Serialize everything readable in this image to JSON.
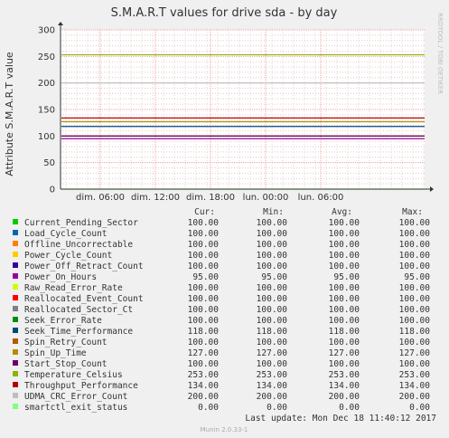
{
  "chart_data": {
    "type": "line",
    "title": "S.M.A.R.T values for drive sda - by day",
    "ylabel": "Attribute S.M.A.R.T value",
    "side_label": "RRDTOOL / TOBI OETIKER",
    "ylim": [
      0,
      300
    ],
    "y_ticks": [
      0,
      50,
      100,
      150,
      200,
      250,
      300
    ],
    "x_ticks": [
      "dim. 06:00",
      "dim. 12:00",
      "dim. 18:00",
      "lun. 00:00",
      "lun. 06:00"
    ],
    "grid": true,
    "legend_headers": [
      "Cur:",
      "Min:",
      "Avg:",
      "Max:"
    ],
    "series": [
      {
        "name": "Current_Pending_Sector",
        "color": "#00cc00",
        "cur": "100.00",
        "min": "100.00",
        "avg": "100.00",
        "max": "100.00",
        "value": 100
      },
      {
        "name": "Load_Cycle_Count",
        "color": "#0066b3",
        "cur": "100.00",
        "min": "100.00",
        "avg": "100.00",
        "max": "100.00",
        "value": 100
      },
      {
        "name": "Offline_Uncorrectable",
        "color": "#ff8000",
        "cur": "100.00",
        "min": "100.00",
        "avg": "100.00",
        "max": "100.00",
        "value": 100
      },
      {
        "name": "Power_Cycle_Count",
        "color": "#ffcc00",
        "cur": "100.00",
        "min": "100.00",
        "avg": "100.00",
        "max": "100.00",
        "value": 100
      },
      {
        "name": "Power_Off_Retract_Count",
        "color": "#330099",
        "cur": "100.00",
        "min": "100.00",
        "avg": "100.00",
        "max": "100.00",
        "value": 100
      },
      {
        "name": "Power_On_Hours",
        "color": "#990099",
        "cur": "95.00",
        "min": "95.00",
        "avg": "95.00",
        "max": "95.00",
        "value": 95
      },
      {
        "name": "Raw_Read_Error_Rate",
        "color": "#ccff00",
        "cur": "100.00",
        "min": "100.00",
        "avg": "100.00",
        "max": "100.00",
        "value": 100
      },
      {
        "name": "Reallocated_Event_Count",
        "color": "#ff0000",
        "cur": "100.00",
        "min": "100.00",
        "avg": "100.00",
        "max": "100.00",
        "value": 100
      },
      {
        "name": "Reallocated_Sector_Ct",
        "color": "#808080",
        "cur": "100.00",
        "min": "100.00",
        "avg": "100.00",
        "max": "100.00",
        "value": 100
      },
      {
        "name": "Seek_Error_Rate",
        "color": "#008f00",
        "cur": "100.00",
        "min": "100.00",
        "avg": "100.00",
        "max": "100.00",
        "value": 100
      },
      {
        "name": "Seek_Time_Performance",
        "color": "#00487d",
        "cur": "118.00",
        "min": "118.00",
        "avg": "118.00",
        "max": "118.00",
        "value": 118
      },
      {
        "name": "Spin_Retry_Count",
        "color": "#b35a00",
        "cur": "100.00",
        "min": "100.00",
        "avg": "100.00",
        "max": "100.00",
        "value": 100
      },
      {
        "name": "Spin_Up_Time",
        "color": "#b38f00",
        "cur": "127.00",
        "min": "127.00",
        "avg": "127.00",
        "max": "127.00",
        "value": 127
      },
      {
        "name": "Start_Stop_Count",
        "color": "#6b006b",
        "cur": "100.00",
        "min": "100.00",
        "avg": "100.00",
        "max": "100.00",
        "value": 100
      },
      {
        "name": "Temperature_Celsius",
        "color": "#8fb300",
        "cur": "253.00",
        "min": "253.00",
        "avg": "253.00",
        "max": "253.00",
        "value": 253
      },
      {
        "name": "Throughput_Performance",
        "color": "#b30000",
        "cur": "134.00",
        "min": "134.00",
        "avg": "134.00",
        "max": "134.00",
        "value": 134
      },
      {
        "name": "UDMA_CRC_Error_Count",
        "color": "#bebebe",
        "cur": "200.00",
        "min": "200.00",
        "avg": "200.00",
        "max": "200.00",
        "value": 200
      },
      {
        "name": "smartctl_exit_status",
        "color": "#80ff80",
        "cur": "0.00",
        "min": "0.00",
        "avg": "0.00",
        "max": "0.00",
        "value": 0
      }
    ],
    "last_update": "Last update:  Mon Dec 18 11:40:12 2017",
    "footer": "Munin 2.0.33-1"
  }
}
